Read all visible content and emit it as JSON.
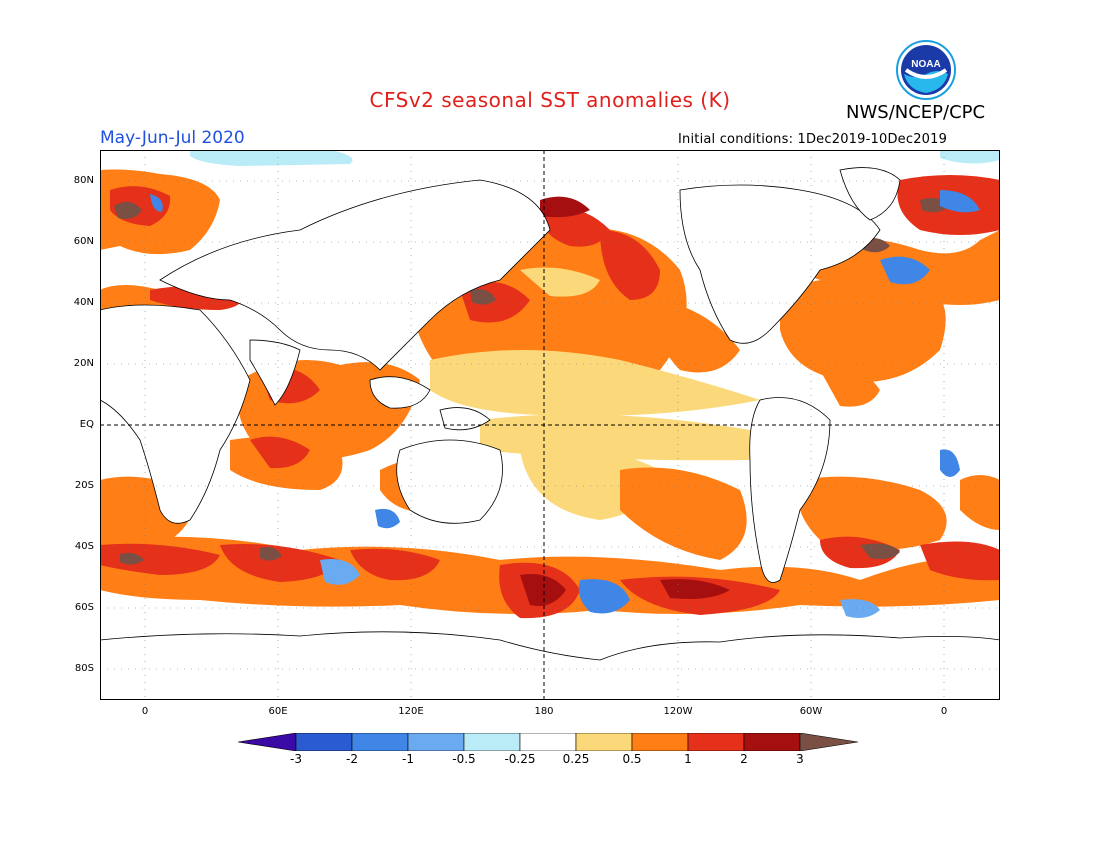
{
  "header": {
    "title": "CFSv2 seasonal SST anomalies (K)",
    "agency": "NWS/NCEP/CPC",
    "season": "May-Jun-Jul 2020",
    "initial_conditions": "Initial conditions: 1Dec2019-10Dec2019",
    "logo_text": "NOAA"
  },
  "map": {
    "lat_labels": [
      "80N",
      "60N",
      "40N",
      "20N",
      "EQ",
      "20S",
      "40S",
      "60S",
      "80S"
    ],
    "lon_labels": [
      "0",
      "60E",
      "120E",
      "180",
      "120W",
      "60W",
      "0"
    ]
  },
  "colorbar": {
    "labels": [
      "-3",
      "-2",
      "-1",
      "-0.5",
      "-0.25",
      "0.25",
      "0.5",
      "1",
      "2",
      "3"
    ],
    "colors": [
      "#3b0aa6",
      "#2a5bd0",
      "#3f86e6",
      "#6aaaf0",
      "#b9ecf6",
      "#ffffff",
      "#fbd97a",
      "#ff7f16",
      "#e5301a",
      "#a50f0f",
      "#7a5044"
    ]
  }
}
